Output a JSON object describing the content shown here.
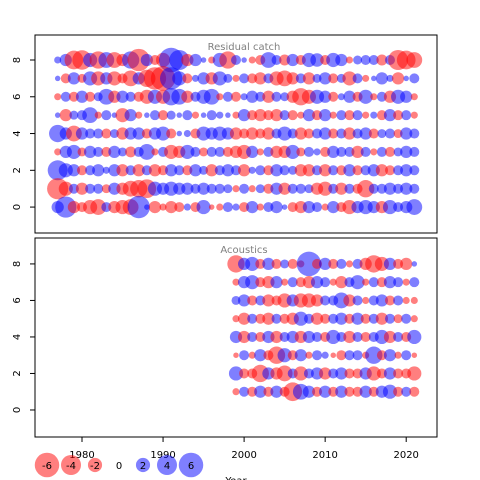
{
  "chart_data": [
    {
      "type": "bubble",
      "title": "Residual catch",
      "x": [
        1977,
        1978,
        1979,
        1980,
        1981,
        1982,
        1983,
        1984,
        1985,
        1986,
        1987,
        1988,
        1989,
        1990,
        1991,
        1992,
        1993,
        1994,
        1995,
        1996,
        1997,
        1998,
        1999,
        2000,
        2001,
        2002,
        2003,
        2004,
        2005,
        2006,
        2007,
        2008,
        2009,
        2010,
        2011,
        2012,
        2013,
        2014,
        2015,
        2016,
        2017,
        2018,
        2019,
        2020,
        2021
      ],
      "ages": [
        8,
        7,
        6,
        5,
        4,
        3,
        2,
        1,
        0
      ],
      "values": [
        [
          0.5,
          1.5,
          -3.5,
          -3.8,
          2,
          -3,
          2.5,
          -2.5,
          -1.5,
          3,
          -5,
          1.5,
          -1,
          -2,
          6,
          4,
          -1.5,
          1.5,
          0.3,
          -0.5,
          2,
          -3,
          1,
          0.3,
          -0.5,
          -1,
          2.5,
          1,
          -1.2,
          1.5,
          -1,
          2,
          1.8,
          -1,
          2,
          1.5,
          -0.5,
          0.8,
          1,
          1,
          -1.2,
          1,
          -4,
          -3.5,
          -2.5
        ],
        [
          0.3,
          -1,
          1.5,
          -0.8,
          2,
          -2,
          1.5,
          -2,
          -1,
          -2.5,
          1.5,
          -3,
          -5,
          -6,
          5,
          2,
          -1,
          0.5,
          1.5,
          -1.5,
          2,
          0.8,
          -0.5,
          1,
          -1,
          -1.5,
          1,
          -2,
          -2.5,
          -1.5,
          1,
          -1.5,
          0.8,
          1.5,
          -1,
          0.8,
          -2,
          1,
          -0.5,
          0.3,
          1.5,
          0.5,
          -1.5,
          0.3,
          1
        ],
        [
          -0.5,
          1,
          -1,
          1.5,
          -1,
          0.8,
          2.5,
          -1.5,
          1.5,
          1,
          -1,
          -2,
          2,
          -2,
          3,
          2.5,
          -1.5,
          1,
          2,
          2.5,
          -0.5,
          1,
          -1,
          0.5,
          1.5,
          1,
          -1.5,
          1,
          0.8,
          -1.5,
          -3,
          -2,
          2,
          1.5,
          -1,
          0.5,
          1.5,
          -1,
          2,
          -0.5,
          1,
          -1.5,
          2,
          1.5,
          -0.5
        ],
        [
          0.3,
          -1.5,
          0.8,
          1,
          2.5,
          -0.5,
          1,
          0.3,
          -2,
          1.5,
          -0.5,
          0.3,
          1,
          -1,
          0.8,
          0.3,
          1,
          -0.5,
          0.3,
          1,
          0.5,
          0.3,
          -0.5,
          1.5,
          -1,
          -1.5,
          -1,
          -1.5,
          1,
          -1,
          -0.5,
          1.5,
          -1,
          1.5,
          -0.5,
          1,
          -1,
          1,
          -0.5,
          0.5,
          -1,
          1.5,
          -1,
          1,
          -0.5
        ],
        [
          3,
          1.5,
          -2.5,
          1.5,
          1,
          1,
          -1,
          0.8,
          -1.5,
          1.5,
          1.5,
          -1,
          1.5,
          2,
          -1,
          0.3,
          0.5,
          -1,
          2,
          1.5,
          2,
          1.5,
          -1.5,
          -1,
          -1.5,
          -1,
          -1.5,
          1,
          2,
          1,
          -1.5,
          -1,
          1,
          1.5,
          -1,
          1,
          -1.5,
          1,
          1.5,
          -1,
          0.8,
          1,
          -0.8,
          1.5,
          1
        ],
        [
          -0.5,
          1.5,
          2,
          -0.8,
          1.5,
          1,
          -1,
          1.5,
          0.8,
          -1.2,
          1,
          2.5,
          -0.5,
          1,
          -2,
          -1.5,
          2,
          1,
          -0.8,
          1,
          1,
          -1,
          -1.5,
          -2,
          1.5,
          -0.5,
          1,
          -1.5,
          -1.5,
          2,
          -0.8,
          1,
          0.5,
          -1,
          1.5,
          1,
          1,
          -1.5,
          1,
          -0.5,
          1,
          -1,
          0.8,
          1.5,
          1
        ],
        [
          4,
          2,
          1.5,
          -1,
          1,
          1.5,
          0.5,
          1.5,
          -1.5,
          1,
          -1.5,
          1,
          -1.5,
          -1,
          1.5,
          1,
          -1,
          1.5,
          0.8,
          -1.5,
          1,
          1.5,
          1,
          -1.5,
          0.5,
          1,
          -1,
          1.5,
          1,
          0.8,
          -1.5,
          -1.5,
          1,
          -1.5,
          1,
          -1,
          1.5,
          -1,
          1,
          1.5,
          -1.5,
          -1,
          1,
          1.5,
          1
        ],
        [
          -4.5,
          -2,
          1,
          -1.5,
          1,
          1,
          -0.8,
          1.5,
          -1.5,
          -2.5,
          -3,
          -3.5,
          2,
          1.5,
          2,
          1.5,
          1.5,
          1,
          1.5,
          1,
          1,
          0.8,
          -0.5,
          1,
          -0.5,
          0.8,
          -1,
          1.5,
          -1.5,
          1,
          1,
          0.8,
          -1.5,
          -2,
          1,
          -1.5,
          1,
          -1,
          -3,
          1,
          1,
          1.5,
          1,
          1.5,
          1
        ],
        [
          1.5,
          4.5,
          -1.5,
          -1,
          -2,
          -2.5,
          1,
          -1.5,
          -2,
          -2.5,
          5,
          0.3,
          -1.5,
          -0.5,
          -1.5,
          -1,
          0.5,
          -1,
          2,
          -0.3,
          -0.5,
          1,
          0.5,
          -1,
          1.5,
          -0.5,
          1,
          1.5,
          0.3,
          -1,
          -1.5,
          1.5,
          1,
          -0.5,
          1.5,
          -1,
          -2,
          1.5,
          2,
          1.5,
          -1.5,
          2,
          1,
          1.5,
          2.5
        ]
      ],
      "xlim": [
        1974.2,
        2023.8
      ],
      "ylim": [
        -1.41,
        9.36
      ],
      "yticks": [
        0,
        2,
        4,
        6,
        8
      ],
      "neg_color": "#ff0000",
      "pos_color": "#0000ff"
    },
    {
      "type": "bubble",
      "title": "Acoustics",
      "xlabel": "Year",
      "x": [
        1999,
        2000,
        2001,
        2002,
        2003,
        2004,
        2005,
        2006,
        2007,
        2008,
        2009,
        2010,
        2011,
        2012,
        2013,
        2014,
        2015,
        2016,
        2017,
        2018,
        2019,
        2020,
        2021
      ],
      "ages": [
        8,
        7,
        6,
        5,
        4,
        3,
        2,
        1
      ],
      "values": [
        [
          -3,
          1.5,
          2,
          -1,
          1.5,
          -1,
          0.8,
          -1,
          -0.5,
          6,
          -1,
          1.5,
          -1,
          1,
          -0.5,
          1,
          -1.5,
          -3,
          -2,
          1.5,
          -1,
          -1.5,
          0.3
        ],
        [
          -0.5,
          1.5,
          2,
          -1,
          -1.5,
          1.5,
          -0.5,
          1,
          -1,
          -1.5,
          1.5,
          1,
          -0.5,
          -1.5,
          1,
          2,
          -0.5,
          1,
          -1,
          1.5,
          1,
          -0.5,
          1
        ],
        [
          0.8,
          1.5,
          -1,
          1,
          -1.5,
          -1,
          -2,
          1.5,
          -2,
          -2,
          -1.5,
          1,
          1,
          2.5,
          -1.5,
          1,
          -0.5,
          1,
          1.5,
          -1,
          1,
          -0.5,
          -0.5
        ],
        [
          -0.5,
          -1.5,
          1,
          -1,
          -1.5,
          1,
          -1,
          -1.5,
          2,
          1,
          -1.5,
          -1,
          1,
          1.5,
          -1,
          1.5,
          -1,
          1,
          -1.5,
          1,
          -0.8,
          1,
          -0.5
        ],
        [
          1.5,
          -1.5,
          1,
          -1,
          1.5,
          -1.5,
          1,
          1.5,
          -1.5,
          1.5,
          1,
          -1,
          2,
          1,
          -1.5,
          1,
          -1,
          1,
          2,
          -1.5,
          1,
          -1,
          2
        ],
        [
          -0.3,
          1,
          -0.5,
          1.5,
          -1,
          -3,
          2,
          -1,
          1.5,
          -0.5,
          1,
          0.5,
          -0.3,
          -1,
          1,
          1,
          -0.5,
          3,
          -1,
          1.5,
          -0.5,
          1,
          -0.3
        ],
        [
          2,
          -1,
          -1,
          -3,
          1.5,
          -1.5,
          -2.5,
          1,
          -2,
          1,
          1.5,
          -1.5,
          1,
          1.5,
          -1,
          -1,
          1.5,
          -2,
          -1,
          1.5,
          -1,
          -1,
          -2
        ],
        [
          -0.5,
          1,
          -1,
          1.5,
          -1,
          1.5,
          -1,
          -3.5,
          2.5,
          1.5,
          -1,
          1.5,
          -1,
          1.5,
          -1,
          -1,
          1.5,
          -1,
          1.5,
          2,
          -1,
          1,
          -1
        ]
      ],
      "xlim": [
        1974.2,
        2023.8
      ],
      "ylim": [
        -1.48,
        9.42
      ],
      "yticks": [
        0,
        2,
        4,
        6,
        8
      ],
      "xticks": [
        1980,
        1990,
        2000,
        2010,
        2020
      ],
      "neg_color": "#ff0000",
      "pos_color": "#0000ff",
      "size_legend": [
        -6,
        -4,
        -2,
        0,
        2,
        4,
        6
      ]
    }
  ]
}
